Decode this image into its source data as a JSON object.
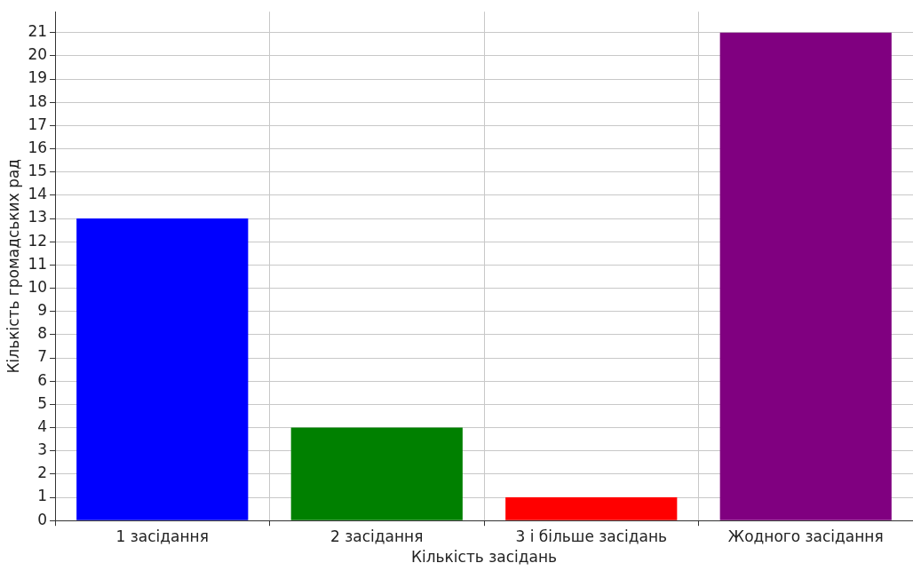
{
  "chart_data": {
    "type": "bar",
    "xlabel": "Кількість засідань",
    "ylabel": "Кількість громадських рад",
    "categories": [
      "1 засідання",
      "2 засідання",
      "3 і більше засідань",
      "Жодного засідання"
    ],
    "values": [
      13,
      4,
      1,
      21
    ],
    "colors": [
      "#0000ff",
      "#008000",
      "#ff0000",
      "#800080"
    ],
    "ylim": [
      0,
      21.9
    ],
    "yticks": [
      0,
      1,
      2,
      3,
      4,
      5,
      6,
      7,
      8,
      9,
      10,
      11,
      12,
      13,
      14,
      15,
      16,
      17,
      18,
      19,
      20,
      21
    ],
    "grid": true
  }
}
